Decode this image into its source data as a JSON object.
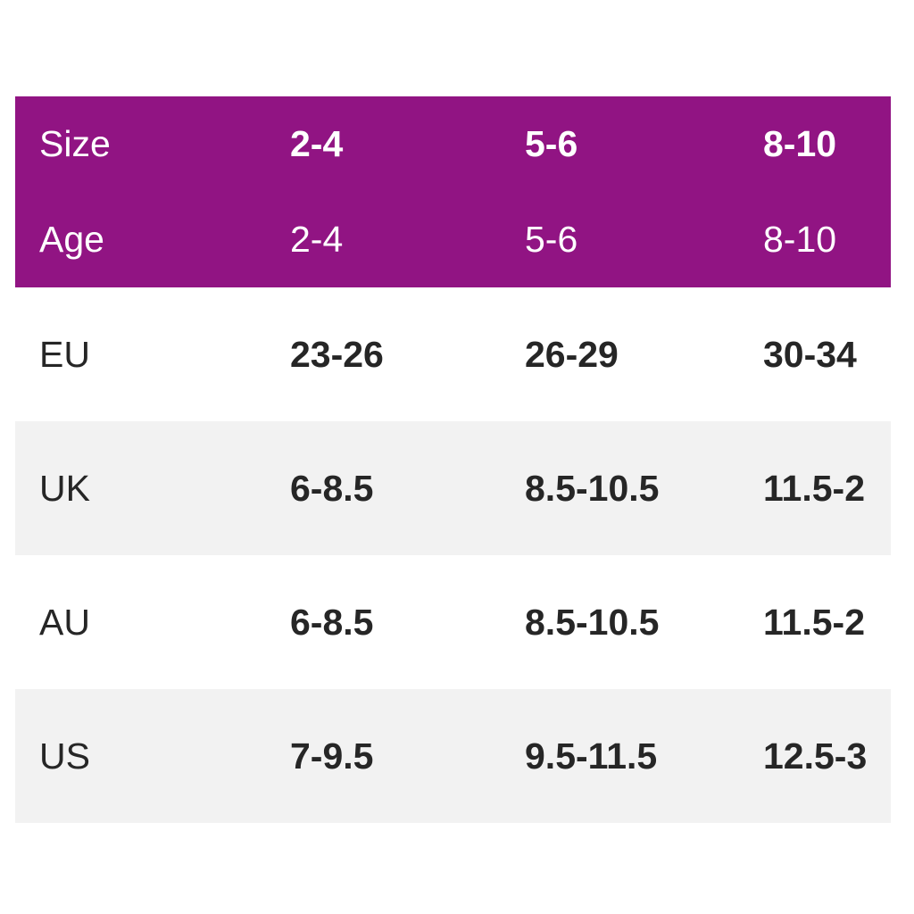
{
  "chart_data": {
    "type": "table",
    "header_rows": [
      {
        "label": "Size",
        "values": [
          "2-4",
          "5-6",
          "8-10"
        ]
      },
      {
        "label": "Age",
        "values": [
          "2-4",
          "5-6",
          "8-10"
        ]
      }
    ],
    "rows": [
      {
        "label": "EU",
        "values": [
          "23-26",
          "26-29",
          "30-34"
        ]
      },
      {
        "label": "UK",
        "values": [
          "6-8.5",
          "8.5-10.5",
          "11.5-2"
        ]
      },
      {
        "label": "AU",
        "values": [
          "6-8.5",
          "8.5-10.5",
          "11.5-2"
        ]
      },
      {
        "label": "US",
        "values": [
          "7-9.5",
          "9.5-11.5",
          "12.5-3"
        ]
      }
    ],
    "layout": {
      "grid": "off",
      "alternating_row_shading": "on"
    }
  },
  "colors": {
    "header_bg": "#911483",
    "header_text": "#ffffff",
    "row_bg": "#ffffff",
    "row_alt_bg": "#f2f2f2",
    "body_text": "#262626"
  }
}
